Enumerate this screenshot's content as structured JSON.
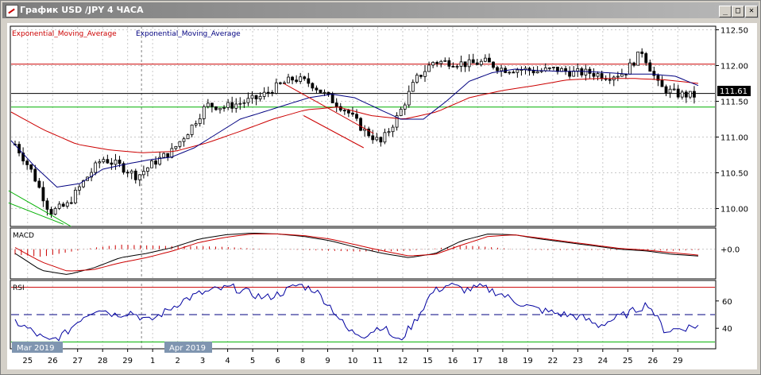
{
  "window": {
    "title": "График USD /JPY  4 ЧАСА",
    "minimize_glyph": "_",
    "maximize_glyph": "□",
    "close_glyph": "✕"
  },
  "colors": {
    "ema_slow": "#cc0000",
    "ema_fast": "#000080",
    "trend_green": "#00b000",
    "bull_candle": "#ffffff",
    "bear_candle": "#000000",
    "grid": "#c0c0c0",
    "date_marker": "#7f95b0"
  },
  "chart_data": [
    {
      "type": "candlestick",
      "panel": "price",
      "legend": [
        "Exponential_Moving_Average",
        "Exponential_Moving_Average"
      ],
      "ylim": [
        109.75,
        112.55
      ],
      "y_ticks": [
        "112.50",
        "112.00",
        "111.50",
        "111.00",
        "110.50",
        "110.00"
      ],
      "current_price": "111.61",
      "horizontal_levels": [
        {
          "value": 112.02,
          "color": "red"
        },
        {
          "value": 111.61,
          "color": "black"
        },
        {
          "value": 111.42,
          "color": "green"
        }
      ],
      "x_labels": [
        "25",
        "26",
        "27",
        "28",
        "29",
        "1",
        "2",
        "3",
        "4",
        "5",
        "6",
        "8",
        "9",
        "10",
        "11",
        "12",
        "15",
        "16",
        "17",
        "18",
        "19",
        "22",
        "23",
        "24",
        "25",
        "26",
        "29"
      ],
      "period_markers": [
        "Mar 2019",
        "Apr 2019"
      ],
      "close_path": [
        110.9,
        110.5,
        109.95,
        110.05,
        110.4,
        110.7,
        110.6,
        110.45,
        110.65,
        110.8,
        111.1,
        111.45,
        111.42,
        111.48,
        111.55,
        111.7,
        111.82,
        111.75,
        111.55,
        111.38,
        111.1,
        110.92,
        111.3,
        111.8,
        112.05,
        112.05,
        112.02,
        112.05,
        111.95,
        111.95,
        111.92,
        111.95,
        111.9,
        111.9,
        111.85,
        111.9,
        112.2,
        111.7,
        111.6,
        111.58
      ],
      "ema_fast_path": [
        110.95,
        110.6,
        110.3,
        110.35,
        110.55,
        110.62,
        110.68,
        110.72,
        110.85,
        111.05,
        111.25,
        111.35,
        111.45,
        111.55,
        111.6,
        111.55,
        111.4,
        111.25,
        111.25,
        111.5,
        111.78,
        111.9,
        111.95,
        111.93,
        111.92,
        111.92,
        111.9,
        111.88,
        111.88,
        111.85,
        111.72
      ],
      "ema_slow_path": [
        111.35,
        111.1,
        110.9,
        110.82,
        110.78,
        110.8,
        110.92,
        111.08,
        111.25,
        111.38,
        111.42,
        111.3,
        111.25,
        111.35,
        111.55,
        111.65,
        111.72,
        111.8,
        111.82,
        111.82,
        111.8,
        111.75
      ],
      "trendlines": [
        {
          "color": "green",
          "from": [
            0,
            110.08
          ],
          "to": [
            2.2,
            109.78
          ]
        },
        {
          "color": "green",
          "from": [
            0,
            110.25
          ],
          "to": [
            2.5,
            109.75
          ]
        },
        {
          "color": "red",
          "from": [
            11.0,
            111.75
          ],
          "to": [
            14.6,
            111.05
          ]
        },
        {
          "color": "red",
          "from": [
            11.8,
            111.3
          ],
          "to": [
            14.2,
            110.85
          ]
        }
      ]
    },
    {
      "type": "histogram+line",
      "panel": "MACD",
      "label": "MACD",
      "y_ticks": [
        "+0.0"
      ],
      "ylim": [
        -0.35,
        0.25
      ]
    },
    {
      "type": "line",
      "panel": "RSI",
      "label": "RSI",
      "ylim": [
        25,
        75
      ],
      "y_ticks": [
        "60",
        "40"
      ],
      "levels": [
        {
          "value": 70,
          "color": "red"
        },
        {
          "value": 50,
          "color": "navy",
          "style": "dashed"
        },
        {
          "value": 30,
          "color": "green"
        }
      ]
    }
  ]
}
